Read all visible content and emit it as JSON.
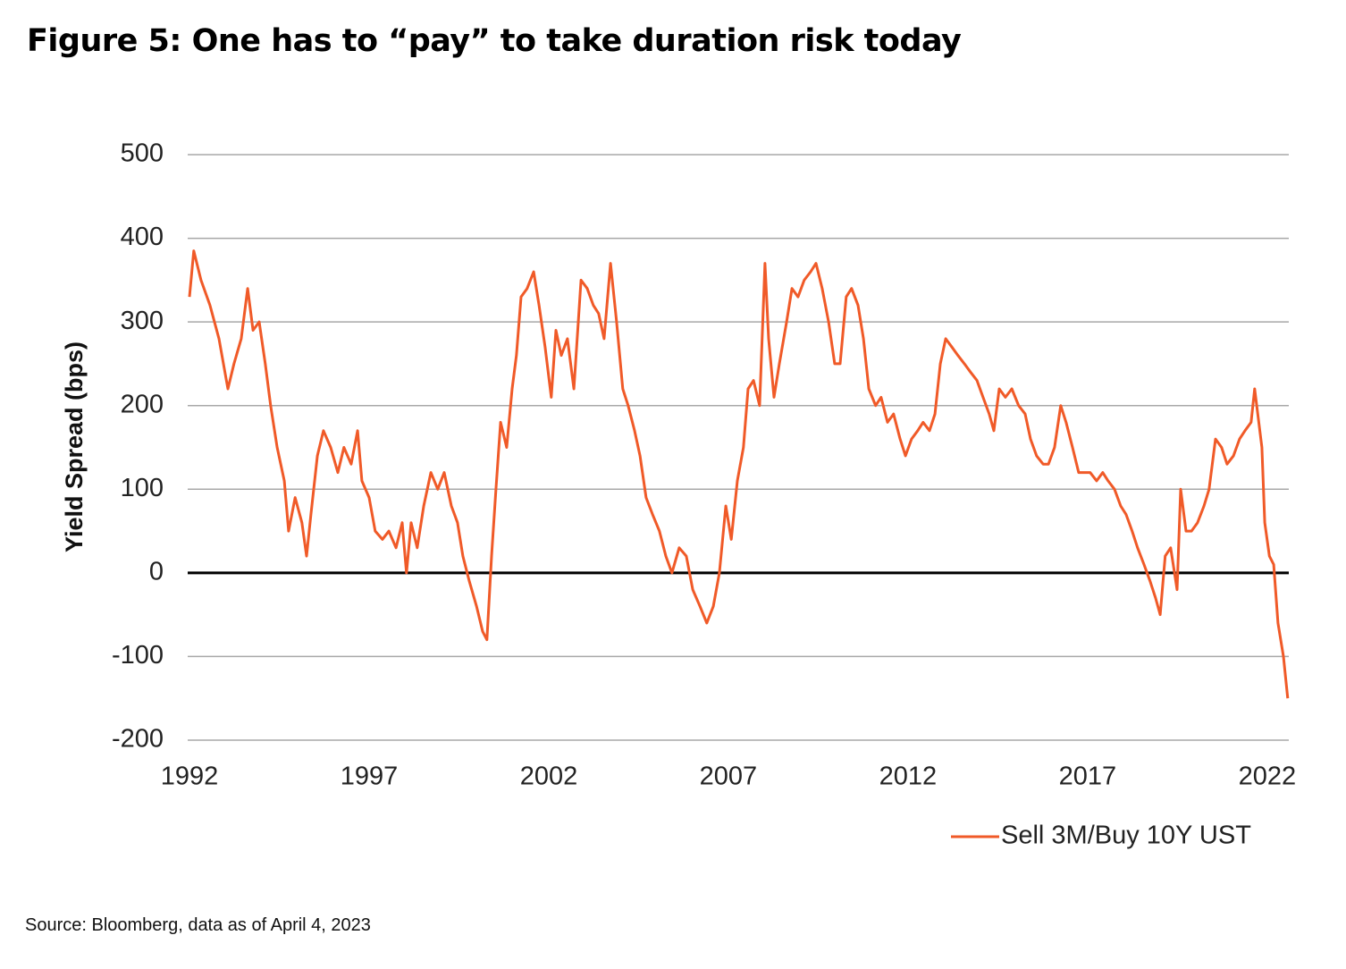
{
  "chart_data": {
    "type": "line",
    "title": "Figure 5: One has to “pay” to take duration risk today",
    "y_label": "Yield Spread (bps)",
    "source": "Source: Bloomberg, data as of April 4, 2023",
    "xlim": [
      1992,
      2022.6
    ],
    "xticks": [
      1992,
      1997,
      2002,
      2007,
      2012,
      2017,
      2022
    ],
    "ylim": [
      -200,
      500
    ],
    "yticks": [
      -200,
      -100,
      0,
      100,
      200,
      300,
      400,
      500
    ],
    "grid": true,
    "zero_line": true,
    "legend": "bottom-right",
    "series": [
      {
        "name": "Sell 3M/Buy 10Y UST",
        "color": "#f05a28",
        "x": [
          1992.0,
          1992.12,
          1992.32,
          1992.57,
          1992.82,
          1993.07,
          1993.24,
          1993.44,
          1993.62,
          1993.77,
          1993.94,
          1994.11,
          1994.26,
          1994.44,
          1994.64,
          1994.76,
          1994.94,
          1995.13,
          1995.26,
          1995.38,
          1995.56,
          1995.73,
          1995.93,
          1996.13,
          1996.3,
          1996.5,
          1996.68,
          1996.8,
          1997.0,
          1997.17,
          1997.37,
          1997.55,
          1997.75,
          1997.92,
          1998.04,
          1998.17,
          1998.34,
          1998.52,
          1998.72,
          1998.91,
          1999.09,
          1999.29,
          1999.46,
          1999.61,
          1999.79,
          1999.99,
          2000.16,
          2000.28,
          2000.41,
          2000.53,
          2000.66,
          2000.83,
          2000.98,
          2001.1,
          2001.23,
          2001.4,
          2001.58,
          2001.73,
          2001.9,
          2002.07,
          2002.2,
          2002.35,
          2002.52,
          2002.7,
          2002.9,
          2003.07,
          2003.24,
          2003.39,
          2003.54,
          2003.72,
          2003.89,
          2004.06,
          2004.21,
          2004.39,
          2004.54,
          2004.71,
          2004.89,
          2005.08,
          2005.26,
          2005.43,
          2005.63,
          2005.83,
          2006.01,
          2006.21,
          2006.4,
          2006.58,
          2006.75,
          2006.93,
          2007.08,
          2007.25,
          2007.42,
          2007.55,
          2007.7,
          2007.87,
          2008.02,
          2008.12,
          2008.27,
          2008.42,
          2008.62,
          2008.77,
          2008.94,
          2009.11,
          2009.29,
          2009.44,
          2009.61,
          2009.79,
          2009.96,
          2010.11,
          2010.28,
          2010.43,
          2010.61,
          2010.76,
          2010.91,
          2011.1,
          2011.25,
          2011.43,
          2011.6,
          2011.78,
          2011.93,
          2012.1,
          2012.27,
          2012.42,
          2012.6,
          2012.75,
          2012.9,
          2013.05,
          2013.22,
          2013.39,
          2013.57,
          2013.74,
          2013.92,
          2014.09,
          2014.26,
          2014.39,
          2014.54,
          2014.71,
          2014.89,
          2015.08,
          2015.26,
          2015.41,
          2015.58,
          2015.76,
          2015.91,
          2016.08,
          2016.25,
          2016.4,
          2016.58,
          2016.75,
          2016.93,
          2017.07,
          2017.25,
          2017.42,
          2017.57,
          2017.75,
          2017.92,
          2018.07,
          2018.24,
          2018.39,
          2018.57,
          2018.74,
          2018.89,
          2019.02,
          2019.16,
          2019.31,
          2019.49,
          2019.59,
          2019.74,
          2019.89,
          2020.06,
          2020.24,
          2020.38,
          2020.56,
          2020.73,
          2020.88,
          2021.06,
          2021.23,
          2021.38,
          2021.55,
          2021.65,
          2021.85,
          2021.93,
          2022.06,
          2022.18,
          2022.3,
          2022.45,
          2022.57
        ],
        "values": [
          330,
          385,
          350,
          320,
          280,
          220,
          250,
          280,
          340,
          290,
          300,
          250,
          200,
          150,
          110,
          50,
          90,
          60,
          20,
          70,
          140,
          170,
          150,
          120,
          150,
          130,
          170,
          110,
          90,
          50,
          40,
          50,
          30,
          60,
          0,
          60,
          30,
          80,
          120,
          100,
          120,
          80,
          60,
          20,
          -10,
          -40,
          -70,
          -80,
          20,
          100,
          180,
          150,
          220,
          260,
          330,
          340,
          360,
          320,
          270,
          210,
          290,
          260,
          280,
          220,
          350,
          340,
          320,
          310,
          280,
          370,
          300,
          220,
          200,
          170,
          140,
          90,
          70,
          50,
          20,
          0,
          30,
          20,
          -20,
          -40,
          -60,
          -40,
          0,
          80,
          40,
          110,
          150,
          220,
          230,
          200,
          370,
          280,
          210,
          250,
          300,
          340,
          330,
          350,
          360,
          370,
          340,
          300,
          250,
          250,
          330,
          340,
          320,
          280,
          220,
          200,
          210,
          180,
          190,
          160,
          140,
          160,
          170,
          180,
          170,
          190,
          250,
          280,
          270,
          260,
          250,
          240,
          230,
          210,
          190,
          170,
          220,
          210,
          220,
          200,
          190,
          160,
          140,
          130,
          130,
          150,
          200,
          180,
          150,
          120,
          120,
          120,
          110,
          120,
          110,
          100,
          80,
          70,
          50,
          30,
          10,
          -10,
          -30,
          -50,
          20,
          30,
          -20,
          100,
          50,
          50,
          60,
          80,
          100,
          160,
          150,
          130,
          140,
          160,
          170,
          180,
          220,
          150,
          60,
          20,
          10,
          -60,
          -100,
          -150
        ]
      }
    ]
  }
}
